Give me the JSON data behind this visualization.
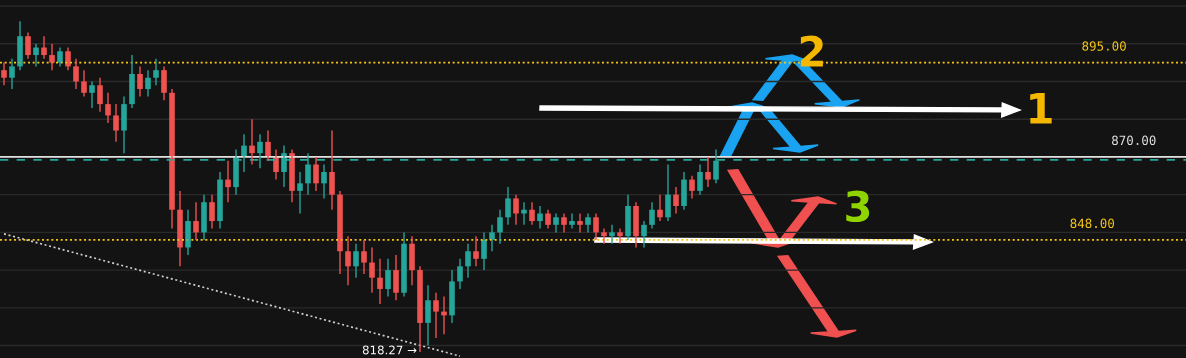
{
  "chart_data": {
    "type": "candlestick",
    "categories": [
      null,
      null,
      null,
      null,
      null,
      null,
      null,
      null,
      null,
      null,
      null,
      null,
      null,
      null,
      null,
      null,
      null,
      null,
      null,
      null,
      null,
      null,
      null,
      null,
      null,
      null,
      null,
      null,
      null,
      null,
      null,
      null,
      null,
      null,
      null,
      null,
      null,
      null,
      null,
      null,
      null,
      null,
      null,
      null,
      null,
      null,
      null,
      null,
      null,
      null,
      null,
      null,
      null,
      null,
      null,
      null,
      null,
      null,
      null,
      null,
      null,
      null,
      null,
      null,
      null,
      null,
      null,
      null,
      null,
      null,
      null,
      null,
      null,
      null,
      null,
      null,
      null,
      null,
      null,
      null,
      null,
      null,
      null,
      null,
      null,
      null,
      null,
      null,
      null,
      null,
      null,
      null,
      null,
      null,
      null,
      null,
      null,
      null,
      null,
      null,
      null,
      null,
      null,
      null,
      null,
      null,
      null,
      null,
      null,
      null,
      null,
      null,
      null,
      null,
      null,
      null,
      null,
      null,
      null,
      null,
      null,
      null,
      null,
      null,
      null,
      null,
      null,
      null,
      null,
      null,
      null,
      null,
      null,
      null,
      null,
      null,
      null,
      null,
      null,
      null,
      null,
      null,
      null,
      null,
      null,
      null,
      null,
      null
    ],
    "ohlc": [
      [
        893,
        895,
        889,
        891
      ],
      [
        891,
        896,
        888,
        894
      ],
      [
        894,
        906,
        893,
        902
      ],
      [
        902,
        903,
        896,
        897
      ],
      [
        897,
        900,
        894,
        899
      ],
      [
        899,
        902,
        896,
        897
      ],
      [
        897,
        900,
        893,
        895
      ],
      [
        895,
        899,
        894,
        898
      ],
      [
        898,
        899,
        893,
        894
      ],
      [
        894,
        896,
        888,
        890
      ],
      [
        890,
        893,
        886,
        887
      ],
      [
        887,
        890,
        883,
        889
      ],
      [
        889,
        891,
        882,
        884
      ],
      [
        884,
        887,
        879,
        881
      ],
      [
        881,
        884,
        874,
        877
      ],
      [
        877,
        886,
        871,
        884
      ],
      [
        884,
        897,
        883,
        892
      ],
      [
        892,
        894,
        886,
        888
      ],
      [
        888,
        893,
        886,
        891
      ],
      [
        891,
        896,
        889,
        893
      ],
      [
        893,
        894,
        885,
        887
      ],
      [
        887,
        888,
        851,
        856
      ],
      [
        856,
        861,
        841,
        846
      ],
      [
        846,
        856,
        844,
        853
      ],
      [
        853,
        858,
        848,
        850
      ],
      [
        850,
        860,
        848,
        858
      ],
      [
        858,
        860,
        851,
        853
      ],
      [
        853,
        866,
        851,
        864
      ],
      [
        864,
        869,
        858,
        862
      ],
      [
        862,
        872,
        860,
        870
      ],
      [
        870,
        876,
        866,
        873
      ],
      [
        873,
        880,
        868,
        871
      ],
      [
        871,
        876,
        867,
        874
      ],
      [
        874,
        877,
        869,
        870
      ],
      [
        870,
        872,
        864,
        866
      ],
      [
        866,
        873,
        862,
        871
      ],
      [
        871,
        872,
        858,
        861
      ],
      [
        861,
        866,
        855,
        863
      ],
      [
        863,
        871,
        860,
        868
      ],
      [
        868,
        870,
        861,
        863
      ],
      [
        863,
        868,
        859,
        866
      ],
      [
        866,
        877,
        856,
        860
      ],
      [
        860,
        861,
        839,
        845
      ],
      [
        845,
        849,
        836,
        841
      ],
      [
        841,
        847,
        838,
        845
      ],
      [
        845,
        848,
        839,
        842
      ],
      [
        842,
        846,
        834,
        838
      ],
      [
        838,
        843,
        831,
        835
      ],
      [
        835,
        843,
        833,
        840
      ],
      [
        840,
        844,
        832,
        834
      ],
      [
        834,
        850,
        833,
        847
      ],
      [
        847,
        849,
        836,
        840
      ],
      [
        840,
        841,
        818.27,
        826
      ],
      [
        826,
        836,
        820,
        832
      ],
      [
        832,
        834,
        822,
        829
      ],
      [
        829,
        833,
        823,
        828
      ],
      [
        828,
        840,
        826,
        837
      ],
      [
        837,
        843,
        835,
        841
      ],
      [
        841,
        847,
        838,
        845
      ],
      [
        845,
        849,
        841,
        843
      ],
      [
        843,
        850,
        840,
        848
      ],
      [
        848,
        852,
        845,
        850
      ],
      [
        850,
        856,
        847,
        854
      ],
      [
        854,
        862,
        852,
        859
      ],
      [
        859,
        860,
        852,
        855
      ],
      [
        855,
        858,
        852,
        856
      ],
      [
        856,
        858,
        852,
        853
      ],
      [
        853,
        857,
        851,
        855
      ],
      [
        855,
        856,
        851,
        852
      ],
      [
        852,
        855,
        850,
        854
      ],
      [
        854,
        855,
        850,
        852
      ],
      [
        852,
        855,
        851,
        853
      ],
      [
        853,
        855,
        850,
        852
      ],
      [
        852,
        855,
        850,
        854
      ],
      [
        854,
        855,
        848,
        850
      ],
      [
        850,
        851,
        847,
        849
      ],
      [
        849,
        852,
        847,
        850
      ],
      [
        850,
        851,
        847,
        849
      ],
      [
        849,
        860,
        848,
        857
      ],
      [
        857,
        858,
        846,
        849
      ],
      [
        849,
        853,
        846,
        852
      ],
      [
        852,
        858,
        851,
        856
      ],
      [
        856,
        860,
        853,
        854
      ],
      [
        854,
        868,
        853,
        860
      ],
      [
        860,
        862,
        855,
        857
      ],
      [
        857,
        866,
        856,
        864
      ],
      [
        864,
        865,
        859,
        861
      ],
      [
        861,
        868,
        860,
        866
      ],
      [
        866,
        870,
        862,
        864
      ],
      [
        864,
        872,
        863,
        869
      ],
      null,
      null,
      null,
      null,
      null,
      null,
      null,
      null,
      null,
      null,
      null,
      null,
      null,
      null,
      null,
      null,
      null,
      null,
      null,
      null,
      null,
      null,
      null,
      null,
      null,
      null,
      null,
      null,
      null,
      null,
      null,
      null,
      null,
      null,
      null,
      null,
      null,
      null,
      null,
      null,
      null,
      null,
      null,
      null,
      null,
      null,
      null,
      null,
      null,
      null,
      null,
      null,
      null,
      null,
      null,
      null,
      null,
      null
    ],
    "series": [
      {
        "type": "line",
        "color": "#d0d0d0",
        "line_style": "dotted",
        "values": [
          849.6,
          null,
          null,
          null,
          null,
          null,
          null,
          null,
          null,
          null,
          null,
          null,
          null,
          null,
          null,
          null,
          null,
          null,
          null,
          null,
          null,
          null,
          null,
          null,
          null,
          null,
          null,
          null,
          null,
          null,
          null,
          null,
          null,
          null,
          null,
          null,
          null,
          null,
          null,
          null,
          null,
          null,
          null,
          null,
          null,
          null,
          null,
          null,
          null,
          null,
          null,
          null,
          null,
          null,
          null,
          null,
          null,
          817.2,
          null,
          null,
          null,
          null,
          null,
          null,
          null,
          null,
          null,
          null,
          null,
          null,
          null,
          null,
          null,
          null,
          null,
          null,
          null,
          null,
          null,
          null,
          null,
          null,
          null,
          null,
          null,
          null,
          null,
          null,
          null,
          null,
          null,
          null,
          null,
          null,
          null,
          null,
          null,
          null,
          null,
          null,
          null,
          null,
          null,
          null,
          null,
          null,
          null,
          null,
          null,
          null,
          null,
          null,
          null,
          null,
          null,
          null,
          null,
          null,
          null,
          null,
          null,
          null,
          null,
          null,
          null,
          null,
          null,
          null,
          null,
          null,
          null,
          null,
          null,
          null,
          null,
          null,
          null,
          null,
          null,
          null,
          null,
          null,
          null,
          null,
          null,
          null,
          null,
          null
        ]
      }
    ],
    "ylim": [
      816.7,
      911.6
    ],
    "yticks": [
      {
        "value": 820,
        "label": null
      },
      {
        "value": 830,
        "label": null
      },
      {
        "value": 840,
        "label": null
      },
      {
        "value": 850,
        "label": null
      },
      {
        "value": 860,
        "label": null
      },
      {
        "value": 870,
        "label": null
      },
      {
        "value": 880,
        "label": null
      },
      {
        "value": 890,
        "label": null
      },
      {
        "value": 900,
        "label": null
      },
      {
        "value": 910,
        "label": null
      }
    ],
    "grid": "y",
    "ref_lines": [
      {
        "axis": "y",
        "value": 895,
        "label": "895.00",
        "color": "#f5c518",
        "line_style": "dotted"
      },
      {
        "axis": "y",
        "value": 870,
        "label": "870.00",
        "color": "#e0e0e0",
        "line_style": "solid"
      },
      {
        "axis": "y",
        "value": 869.2,
        "color": "#26a69a",
        "line_style": "dashed"
      },
      {
        "axis": "y",
        "value": 848,
        "label": "848.00",
        "color": "#f5c518",
        "line_style": "dotted"
      }
    ],
    "annotations": [
      "818.27 →",
      "1",
      "2",
      "3"
    ]
  }
}
